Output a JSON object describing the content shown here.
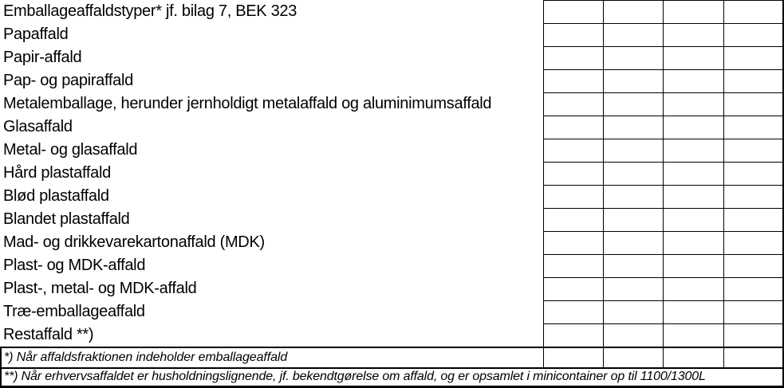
{
  "page": {
    "background": "#ffffff",
    "text_color": "#000000",
    "grid_color": "#000000"
  },
  "table": {
    "header": {
      "label": "Emballageaffaldstyper* jf. bilag 7, BEK 323",
      "cells": [
        "",
        "",
        "",
        ""
      ]
    },
    "rows": [
      {
        "label": "Papaffald",
        "cells": [
          "",
          "",
          "",
          ""
        ]
      },
      {
        "label": "Papir-affald",
        "cells": [
          "",
          "",
          "",
          ""
        ]
      },
      {
        "label": "Pap- og papiraffald",
        "cells": [
          "",
          "",
          "",
          ""
        ]
      },
      {
        "label": "Metalemballage, herunder jernholdigt metalaffald og aluminimumsaffald",
        "cells": [
          "",
          "",
          "",
          ""
        ]
      },
      {
        "label": "Glasaffald",
        "cells": [
          "",
          "",
          "",
          ""
        ]
      },
      {
        "label": "Metal- og glasaffald",
        "cells": [
          "",
          "",
          "",
          ""
        ]
      },
      {
        "label": "Hård plastaffald",
        "cells": [
          "",
          "",
          "",
          ""
        ]
      },
      {
        "label": "Blød plastaffald",
        "cells": [
          "",
          "",
          "",
          ""
        ]
      },
      {
        "label": "Blandet plastaffald",
        "cells": [
          "",
          "",
          "",
          ""
        ]
      },
      {
        "label": "Mad- og drikkevarekartonaffald (MDK)",
        "cells": [
          "",
          "",
          "",
          ""
        ]
      },
      {
        "label": "Plast- og MDK-affald",
        "cells": [
          "",
          "",
          "",
          ""
        ]
      },
      {
        "label": "Plast-, metal- og MDK-affald",
        "cells": [
          "",
          "",
          "",
          ""
        ]
      },
      {
        "label": "Træ-emballageaffald",
        "cells": [
          "",
          "",
          "",
          ""
        ]
      },
      {
        "label": "Restaffald **)",
        "cells": [
          "",
          "",
          "",
          ""
        ]
      }
    ],
    "footnote_1": {
      "label": "*) Når affaldsfraktionen indeholder emballageaffald",
      "cells": [
        "",
        "",
        "",
        ""
      ]
    },
    "footnote_2": "**) Når erhvervsaffaldet er husholdningslignende, jf. bekendtgørelse om affald, og er opsamlet i minicontainer op til 1100/1300L"
  }
}
